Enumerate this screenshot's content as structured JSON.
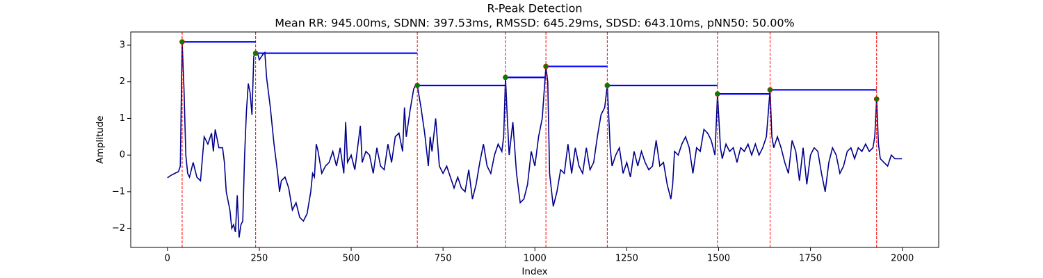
{
  "chart_data": {
    "type": "line",
    "title": "R-Peak Detection",
    "subtitle": "Mean RR: 945.00ms, SDNN: 397.53ms, RMSSD: 645.29ms, SDSD: 643.10ms, pNN50: 50.00%",
    "xlabel": "Index",
    "ylabel": "Amplitude",
    "xlim": [
      -99.95,
      2098.95
    ],
    "ylim": [
      -2.52,
      3.36
    ],
    "xticks": [
      0,
      250,
      500,
      750,
      1000,
      1250,
      1500,
      1750,
      2000
    ],
    "yticks": [
      {
        "value": -2,
        "label": "−2"
      },
      {
        "value": -1,
        "label": "−1"
      },
      0,
      1,
      2,
      3
    ],
    "series": [
      {
        "color": "#00008b",
        "x": [
          0,
          10,
          20,
          30,
          35,
          40,
          45,
          50,
          55,
          60,
          70,
          80,
          90,
          100,
          110,
          120,
          125,
          130,
          140,
          150,
          155,
          160,
          170,
          175,
          180,
          185,
          190,
          195,
          200,
          205,
          210,
          215,
          220,
          225,
          230,
          235,
          240,
          245,
          250,
          260,
          265,
          270,
          280,
          290,
          300,
          305,
          310,
          320,
          330,
          340,
          350,
          360,
          370,
          380,
          390,
          395,
          400,
          405,
          410,
          420,
          430,
          440,
          450,
          460,
          470,
          480,
          485,
          490,
          500,
          510,
          520,
          525,
          530,
          540,
          550,
          560,
          570,
          580,
          590,
          600,
          610,
          620,
          630,
          640,
          645,
          650,
          660,
          670,
          675,
          680,
          690,
          700,
          710,
          715,
          720,
          730,
          740,
          750,
          760,
          770,
          780,
          790,
          800,
          810,
          820,
          830,
          840,
          850,
          860,
          870,
          880,
          890,
          900,
          910,
          915,
          920,
          925,
          930,
          940,
          950,
          960,
          970,
          980,
          990,
          1000,
          1010,
          1020,
          1030,
          1035,
          1040,
          1050,
          1060,
          1070,
          1080,
          1090,
          1100,
          1110,
          1120,
          1130,
          1140,
          1150,
          1160,
          1170,
          1180,
          1190,
          1197,
          1205,
          1210,
          1220,
          1230,
          1240,
          1250,
          1260,
          1270,
          1280,
          1290,
          1300,
          1310,
          1320,
          1330,
          1340,
          1350,
          1360,
          1370,
          1375,
          1380,
          1390,
          1400,
          1410,
          1420,
          1430,
          1440,
          1450,
          1460,
          1470,
          1480,
          1490,
          1497,
          1505,
          1510,
          1520,
          1530,
          1540,
          1550,
          1560,
          1570,
          1580,
          1590,
          1600,
          1610,
          1620,
          1630,
          1640,
          1645,
          1650,
          1660,
          1670,
          1680,
          1690,
          1700,
          1710,
          1720,
          1730,
          1740,
          1750,
          1760,
          1770,
          1780,
          1790,
          1800,
          1810,
          1820,
          1830,
          1840,
          1850,
          1860,
          1870,
          1880,
          1890,
          1900,
          1910,
          1920,
          1925,
          1930,
          1935,
          1940,
          1950,
          1960,
          1970,
          1980,
          1990,
          1999
        ],
        "values": [
          -0.62,
          -0.55,
          -0.5,
          -0.45,
          -0.3,
          3.09,
          1.8,
          0.0,
          -0.5,
          -0.6,
          -0.2,
          -0.6,
          -0.7,
          0.5,
          0.3,
          0.6,
          0.1,
          0.7,
          0.2,
          0.2,
          -0.2,
          -1.0,
          -1.5,
          -2.0,
          -1.9,
          -2.1,
          -1.1,
          -2.25,
          -1.9,
          -1.8,
          0.0,
          1.2,
          1.95,
          1.7,
          1.1,
          2.7,
          2.78,
          2.8,
          2.6,
          2.75,
          2.8,
          2.1,
          1.3,
          0.3,
          -0.5,
          -1.0,
          -0.7,
          -0.6,
          -0.9,
          -1.5,
          -1.3,
          -1.7,
          -1.8,
          -1.6,
          -1.0,
          -0.5,
          -0.6,
          0.3,
          0.1,
          -0.5,
          -0.3,
          -0.2,
          0.1,
          -0.3,
          0.2,
          -0.5,
          0.9,
          -0.2,
          0.0,
          -0.4,
          0.4,
          0.8,
          -0.2,
          0.1,
          0.0,
          -0.5,
          0.2,
          -0.3,
          -0.4,
          0.3,
          -0.2,
          0.5,
          0.6,
          0.1,
          1.3,
          0.5,
          1.2,
          1.8,
          1.9,
          1.9,
          1.3,
          0.6,
          -0.3,
          0.5,
          0.1,
          1.0,
          -0.3,
          -0.5,
          -0.3,
          -0.6,
          -0.9,
          -0.6,
          -0.9,
          -1.0,
          -0.4,
          -1.2,
          -0.8,
          -0.2,
          0.3,
          -0.3,
          -0.5,
          0.0,
          0.3,
          0.1,
          0.5,
          2.12,
          1.0,
          0.0,
          0.9,
          -0.5,
          -1.3,
          -1.2,
          -0.8,
          0.1,
          -0.3,
          0.5,
          1.0,
          2.42,
          2.0,
          -0.5,
          -1.4,
          -1.0,
          -0.4,
          -0.5,
          0.3,
          -0.5,
          0.2,
          -0.3,
          -0.5,
          0.2,
          -0.4,
          -0.2,
          0.5,
          1.1,
          1.3,
          1.9,
          0.2,
          -0.3,
          0.0,
          0.2,
          -0.5,
          -0.2,
          -0.6,
          0.1,
          -0.3,
          0.1,
          -0.2,
          -0.4,
          -0.3,
          0.4,
          -0.3,
          -0.2,
          -0.8,
          -1.2,
          -0.8,
          0.1,
          0.0,
          0.3,
          0.5,
          0.2,
          -0.5,
          0.2,
          0.1,
          0.7,
          0.6,
          0.4,
          0.0,
          1.67,
          0.2,
          -0.1,
          0.3,
          0.1,
          0.2,
          -0.2,
          0.2,
          0.1,
          0.3,
          0.0,
          0.3,
          0.0,
          0.2,
          0.5,
          1.78,
          0.5,
          0.2,
          0.5,
          0.2,
          -0.2,
          -0.5,
          0.4,
          0.1,
          -0.7,
          0.2,
          -0.8,
          0.0,
          0.2,
          0.1,
          -0.5,
          -1.0,
          -0.2,
          0.2,
          0.0,
          -0.5,
          -0.3,
          0.1,
          0.2,
          -0.1,
          0.2,
          0.1,
          0.3,
          0.1,
          0.2,
          0.5,
          1.53,
          0.3,
          -0.1,
          -0.2,
          -0.3,
          0.0,
          -0.1,
          -0.1,
          -0.1
        ]
      }
    ],
    "peaks": {
      "x": [
        40,
        240,
        680,
        920,
        1030,
        1197,
        1497,
        1640,
        1930
      ],
      "values": [
        3.09,
        2.78,
        1.9,
        2.12,
        2.42,
        1.9,
        1.67,
        1.78,
        1.53
      ],
      "color": "#008000",
      "edge_color": "#cc2200",
      "line_color": "#ff0000",
      "interval_color": "#0000ff"
    }
  }
}
